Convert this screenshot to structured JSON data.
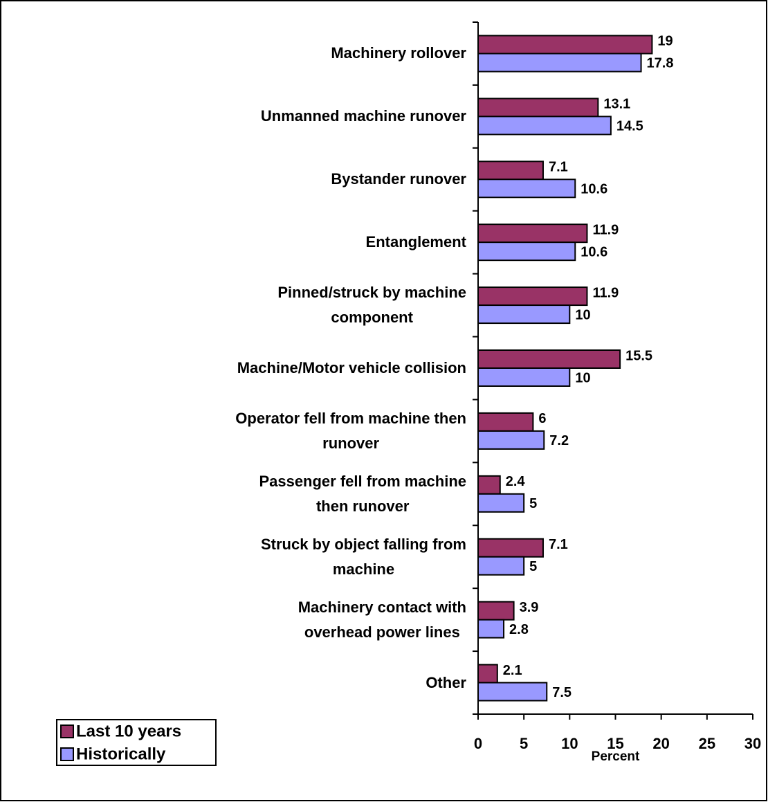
{
  "chart_data": {
    "type": "bar",
    "orientation": "horizontal",
    "categories": [
      "Machinery rollover",
      "Unmanned machine runover",
      "Bystander runover",
      "Entanglement",
      "Pinned/struck by machine\ncomponent",
      "Machine/Motor vehicle collision",
      "Operator fell from machine then\nrunover",
      "Passenger fell from machine\nthen runover",
      "Struck by object falling from\nmachine",
      "Machinery contact with\noverhead power lines",
      "Other"
    ],
    "series": [
      {
        "name": "Last 10 years",
        "color": "#993366",
        "values": [
          19,
          13.1,
          7.1,
          11.9,
          11.9,
          15.5,
          6,
          2.4,
          7.1,
          3.9,
          2.1
        ]
      },
      {
        "name": "Historically",
        "color": "#9999ff",
        "values": [
          17.8,
          14.5,
          10.6,
          10.6,
          10,
          10,
          7.2,
          5,
          5,
          2.8,
          7.5
        ]
      }
    ],
    "x_label": "Percent",
    "xlim": [
      0,
      30
    ],
    "xticks": [
      0,
      5,
      10,
      15,
      20,
      25,
      30
    ],
    "legend": "lower left"
  }
}
